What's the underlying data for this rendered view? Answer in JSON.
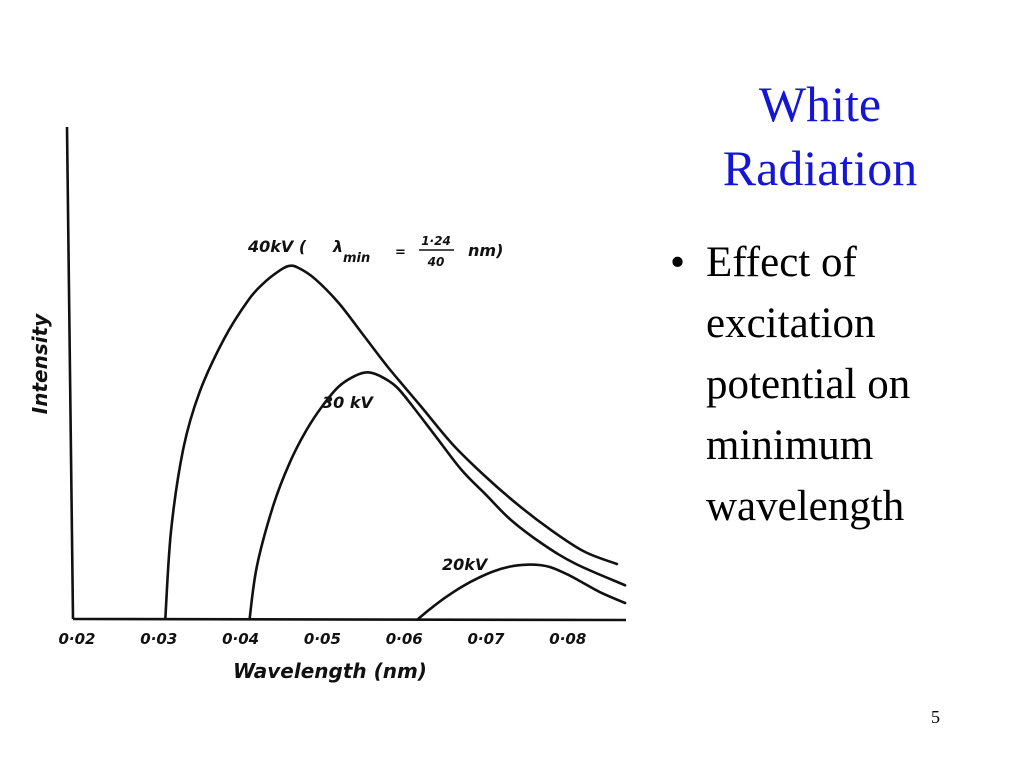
{
  "slide": {
    "title_lines": [
      "White",
      "Radiation"
    ],
    "bullets": [
      {
        "marker": "•",
        "lines": [
          "Effect of",
          "excitation",
          "potential on",
          "minimum",
          "wavelength"
        ]
      }
    ],
    "slide_number": "5"
  },
  "chart_data": {
    "type": "line",
    "xlabel": "Wavelength (nm)",
    "ylabel": "Intensity",
    "xlim": [
      0.02,
      0.0875
    ],
    "ylim": [
      0,
      1.05
    ],
    "x_ticks": [
      0.02,
      0.03,
      0.04,
      0.05,
      0.06,
      0.07,
      0.08
    ],
    "x_tick_labels": [
      "0·02",
      "0·03",
      "0·04",
      "0·05",
      "0·06",
      "0·07",
      "0·08"
    ],
    "y_ticks": [],
    "grid": false,
    "legend": "none",
    "series": [
      {
        "label_parts": {
          "prefix": "40kV (",
          "lambda": "λ",
          "sub": "min",
          "eq": "=",
          "numerator": "1·24",
          "denominator": "40",
          "suffix": "nm)"
        },
        "x": [
          0.0308,
          0.0315,
          0.033,
          0.035,
          0.038,
          0.041,
          0.043,
          0.045,
          0.046,
          0.047,
          0.049,
          0.052,
          0.055,
          0.058,
          0.062,
          0.066,
          0.07,
          0.074,
          0.078,
          0.082,
          0.086
        ],
        "y": [
          0.0,
          0.25,
          0.48,
          0.64,
          0.79,
          0.9,
          0.95,
          0.985,
          0.995,
          0.99,
          0.96,
          0.89,
          0.8,
          0.71,
          0.6,
          0.49,
          0.4,
          0.32,
          0.25,
          0.19,
          0.155
        ]
      },
      {
        "label_parts": {
          "text": "30 kV"
        },
        "x": [
          0.0411,
          0.042,
          0.044,
          0.046,
          0.048,
          0.05,
          0.052,
          0.054,
          0.0555,
          0.057,
          0.059,
          0.061,
          0.064,
          0.067,
          0.07,
          0.073,
          0.077,
          0.081,
          0.087
        ],
        "y": [
          0.0,
          0.15,
          0.32,
          0.44,
          0.53,
          0.6,
          0.655,
          0.685,
          0.695,
          0.685,
          0.655,
          0.6,
          0.51,
          0.42,
          0.35,
          0.28,
          0.21,
          0.155,
          0.095
        ]
      },
      {
        "label_parts": {
          "text": "20kV"
        },
        "x": [
          0.0617,
          0.063,
          0.065,
          0.067,
          0.069,
          0.071,
          0.073,
          0.075,
          0.0765,
          0.078,
          0.08,
          0.082,
          0.084,
          0.087
        ],
        "y": [
          0.0,
          0.025,
          0.06,
          0.09,
          0.115,
          0.135,
          0.148,
          0.153,
          0.152,
          0.145,
          0.125,
          0.1,
          0.075,
          0.045
        ]
      }
    ]
  }
}
